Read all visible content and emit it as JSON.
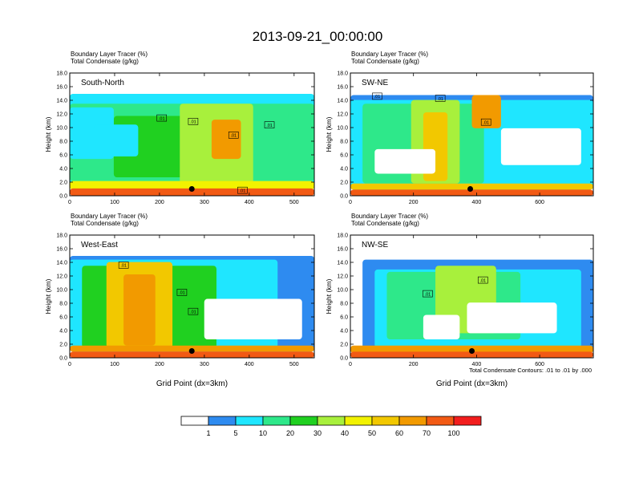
{
  "figure_title": "2013-09-21_00:00:00",
  "footnote": "Total Condensate Contours: .01 to .01 by .000",
  "palette": [
    "#ffffff",
    "#2e8bf0",
    "#1fe6ff",
    "#2ee88a",
    "#20d020",
    "#a8f03c",
    "#f2f200",
    "#f2c800",
    "#f29a00",
    "#f25a14",
    "#f21e1e"
  ],
  "colorbar_labels": [
    "1",
    "5",
    "10",
    "20",
    "30",
    "40",
    "50",
    "60",
    "70",
    "100"
  ],
  "chart_data": [
    {
      "type": "heatmap",
      "panel_label": "South-North",
      "title_line1": "Boundary Layer Tracer   (%)",
      "title_line2": "Total Condensate   (g/kg)",
      "ylabel": "Height (km)",
      "xlabel": "",
      "xlim": [
        0,
        545
      ],
      "ylim": [
        0,
        18
      ],
      "x_ticks": [
        "0",
        "100",
        "200",
        "300",
        "400",
        "500"
      ],
      "y_ticks": [
        "0.0",
        "2.0",
        "4.0",
        "6.0",
        "8.0",
        "10.0",
        "12.0",
        "14.0",
        "16.0",
        "18.0"
      ],
      "contour_labels": [
        {
          "text": ".01",
          "x": 205,
          "y": 11.4
        },
        {
          "text": ".01",
          "x": 275,
          "y": 10.9
        },
        {
          "text": ".01",
          "x": 365,
          "y": 8.9
        },
        {
          "text": ".01",
          "x": 445,
          "y": 10.4
        },
        {
          "text": ".01",
          "x": 385,
          "y": 0.8
        }
      ],
      "marker": {
        "x": 272,
        "y": 1.0
      }
    },
    {
      "type": "heatmap",
      "panel_label": "SW-NE",
      "title_line1": "Boundary Layer Tracer   (%)",
      "title_line2": "Total Condensate   (g/kg)",
      "ylabel": "Height (km)",
      "xlabel": "",
      "xlim": [
        0,
        770
      ],
      "ylim": [
        0,
        18
      ],
      "x_ticks": [
        "0",
        "200",
        "400",
        "600"
      ],
      "y_ticks": [
        "0.0",
        "2.0",
        "4.0",
        "6.0",
        "8.0",
        "10.0",
        "12.0",
        "14.0",
        "16.0",
        "18.0"
      ],
      "contour_labels": [
        {
          "text": ".01",
          "x": 85,
          "y": 14.6
        },
        {
          "text": ".01",
          "x": 285,
          "y": 14.3
        },
        {
          "text": ".01",
          "x": 430,
          "y": 10.8
        }
      ],
      "marker": {
        "x": 380,
        "y": 1.0
      }
    },
    {
      "type": "heatmap",
      "panel_label": "West-East",
      "title_line1": "Boundary Layer Tracer   (%)",
      "title_line2": "Total Condensate   (g/kg)",
      "ylabel": "Height (km)",
      "xlabel": "Grid Point (dx=3km)",
      "xlim": [
        0,
        545
      ],
      "ylim": [
        0,
        18
      ],
      "x_ticks": [
        "0",
        "100",
        "200",
        "300",
        "400",
        "500"
      ],
      "y_ticks": [
        "0.0",
        "2.0",
        "4.0",
        "6.0",
        "8.0",
        "10.0",
        "12.0",
        "14.0",
        "16.0",
        "18.0"
      ],
      "contour_labels": [
        {
          "text": ".01",
          "x": 120,
          "y": 13.6
        },
        {
          "text": ".01",
          "x": 250,
          "y": 9.6
        },
        {
          "text": ".01",
          "x": 275,
          "y": 6.8
        }
      ],
      "marker": {
        "x": 272,
        "y": 1.0
      }
    },
    {
      "type": "heatmap",
      "panel_label": "NW-SE",
      "title_line1": "Boundary Layer Tracer   (%)",
      "title_line2": "Total Condensate   (g/kg)",
      "ylabel": "Height (km)",
      "xlabel": "Grid Point (dx=3km)",
      "xlim": [
        0,
        770
      ],
      "ylim": [
        0,
        18
      ],
      "x_ticks": [
        "0",
        "200",
        "400",
        "600"
      ],
      "y_ticks": [
        "0.0",
        "2.0",
        "4.0",
        "6.0",
        "8.0",
        "10.0",
        "12.0",
        "14.0",
        "16.0",
        "18.0"
      ],
      "contour_labels": [
        {
          "text": ".01",
          "x": 245,
          "y": 9.4
        },
        {
          "text": ".01",
          "x": 420,
          "y": 11.4
        }
      ],
      "marker": {
        "x": 385,
        "y": 1.0
      }
    }
  ]
}
